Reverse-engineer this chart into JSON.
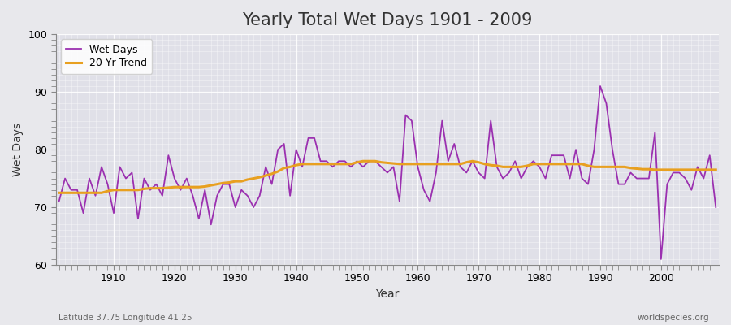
{
  "title": "Yearly Total Wet Days 1901 - 2009",
  "xlabel": "Year",
  "ylabel": "Wet Days",
  "footnote_left": "Latitude 37.75 Longitude 41.25",
  "footnote_right": "worldspecies.org",
  "ylim": [
    60,
    100
  ],
  "yticks": [
    60,
    70,
    80,
    90,
    100
  ],
  "legend_labels": [
    "Wet Days",
    "20 Yr Trend"
  ],
  "wet_days_color": "#9b30b0",
  "trend_color": "#e8a020",
  "bg_color": "#e8e8ec",
  "plot_bg_color": "#e0e0e8",
  "years": [
    1901,
    1902,
    1903,
    1904,
    1905,
    1906,
    1907,
    1908,
    1909,
    1910,
    1911,
    1912,
    1913,
    1914,
    1915,
    1916,
    1917,
    1918,
    1919,
    1920,
    1921,
    1922,
    1923,
    1924,
    1925,
    1926,
    1927,
    1928,
    1929,
    1930,
    1931,
    1932,
    1933,
    1934,
    1935,
    1936,
    1937,
    1938,
    1939,
    1940,
    1941,
    1942,
    1943,
    1944,
    1945,
    1946,
    1947,
    1948,
    1949,
    1950,
    1951,
    1952,
    1953,
    1954,
    1955,
    1956,
    1957,
    1958,
    1959,
    1960,
    1961,
    1962,
    1963,
    1964,
    1965,
    1966,
    1967,
    1968,
    1969,
    1970,
    1971,
    1972,
    1973,
    1974,
    1975,
    1976,
    1977,
    1978,
    1979,
    1980,
    1981,
    1982,
    1983,
    1984,
    1985,
    1986,
    1987,
    1988,
    1989,
    1990,
    1991,
    1992,
    1993,
    1994,
    1995,
    1996,
    1997,
    1998,
    1999,
    2000,
    2001,
    2002,
    2003,
    2004,
    2005,
    2006,
    2007,
    2008,
    2009
  ],
  "wet_days": [
    71,
    75,
    73,
    73,
    69,
    75,
    72,
    77,
    74,
    69,
    77,
    75,
    76,
    68,
    75,
    73,
    74,
    72,
    79,
    75,
    73,
    75,
    72,
    68,
    73,
    67,
    72,
    74,
    74,
    70,
    73,
    72,
    70,
    72,
    77,
    74,
    80,
    81,
    72,
    80,
    77,
    82,
    82,
    78,
    78,
    77,
    78,
    78,
    77,
    78,
    77,
    78,
    78,
    77,
    76,
    77,
    71,
    86,
    85,
    77,
    73,
    71,
    76,
    85,
    78,
    81,
    77,
    76,
    78,
    76,
    75,
    85,
    77,
    75,
    76,
    78,
    75,
    77,
    78,
    77,
    75,
    79,
    79,
    79,
    75,
    80,
    75,
    74,
    80,
    91,
    88,
    80,
    74,
    74,
    76,
    75,
    75,
    75,
    83,
    61,
    74,
    76,
    76,
    75,
    73,
    77,
    75,
    79,
    70
  ],
  "trend": [
    72.5,
    72.5,
    72.5,
    72.5,
    72.5,
    72.5,
    72.5,
    72.5,
    72.8,
    73.0,
    73.0,
    73.0,
    73.0,
    73.0,
    73.2,
    73.3,
    73.3,
    73.3,
    73.4,
    73.5,
    73.5,
    73.5,
    73.5,
    73.5,
    73.6,
    73.8,
    74.0,
    74.2,
    74.3,
    74.5,
    74.5,
    74.8,
    75.0,
    75.2,
    75.5,
    75.8,
    76.2,
    76.8,
    77.0,
    77.3,
    77.5,
    77.5,
    77.5,
    77.5,
    77.5,
    77.5,
    77.5,
    77.5,
    77.5,
    77.8,
    78.0,
    78.0,
    78.0,
    77.8,
    77.7,
    77.6,
    77.5,
    77.5,
    77.5,
    77.5,
    77.5,
    77.5,
    77.5,
    77.5,
    77.5,
    77.5,
    77.5,
    77.8,
    78.0,
    77.8,
    77.5,
    77.3,
    77.2,
    77.0,
    77.0,
    77.0,
    77.0,
    77.2,
    77.5,
    77.5,
    77.5,
    77.5,
    77.5,
    77.5,
    77.5,
    77.5,
    77.5,
    77.2,
    77.0,
    77.0,
    77.0,
    77.0,
    77.0,
    77.0,
    76.8,
    76.7,
    76.6,
    76.6,
    76.5,
    76.5,
    76.5,
    76.5,
    76.5,
    76.5,
    76.5,
    76.5,
    76.5,
    76.5,
    76.5
  ]
}
